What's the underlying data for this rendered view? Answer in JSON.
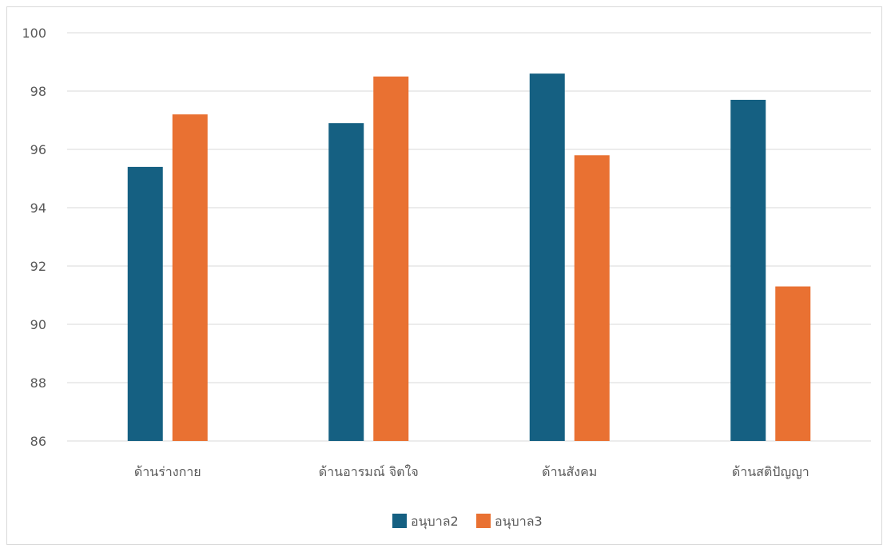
{
  "chart_data": {
    "type": "bar",
    "title": "",
    "xlabel": "",
    "ylabel": "",
    "categories": [
      "ด้านร่างกาย",
      "ด้านอารมณ์ จิตใจ",
      "ด้านสังคม",
      "ด้านสติปัญญา"
    ],
    "series": [
      {
        "name": "อนุบาล2",
        "values": [
          95.4,
          96.9,
          98.6,
          97.7
        ],
        "color": "#156082"
      },
      {
        "name": "อนุบาล3",
        "values": [
          97.2,
          98.5,
          95.8,
          91.3
        ],
        "color": "#E97132"
      }
    ],
    "ylim": [
      86,
      100
    ],
    "yticks": [
      86,
      88,
      90,
      92,
      94,
      96,
      98,
      100
    ],
    "grid": true,
    "legend": "bottom"
  }
}
